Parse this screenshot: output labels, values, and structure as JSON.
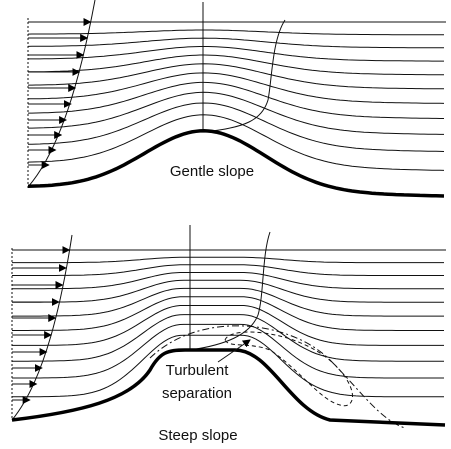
{
  "panels": [
    {
      "label": "Gentle slope"
    },
    {
      "label": "Steep slope",
      "annotation": {
        "lines": [
          "Turbulent",
          "separation"
        ]
      }
    }
  ]
}
